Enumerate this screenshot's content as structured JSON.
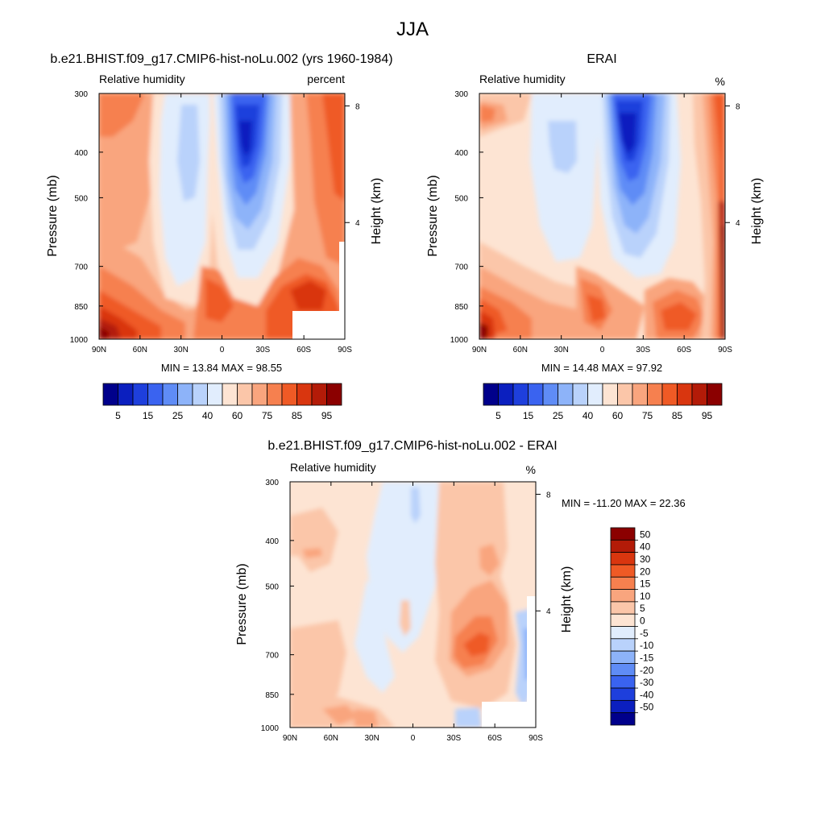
{
  "title": "JJA",
  "chart_data": [
    {
      "type": "heatmap",
      "title": "b.e21.BHIST.f09_g17.CMIP6-hist-noLu.002 (yrs 1960-1984)",
      "left_label": "Relative humidity",
      "right_label": "percent",
      "ylabel": "Pressure (mb)",
      "ylabel2": "Height (km)",
      "x_ticks": [
        "90N",
        "60N",
        "30N",
        "0",
        "30S",
        "60S",
        "90S"
      ],
      "y_ticks": [
        "300",
        "400",
        "500",
        "700",
        "850",
        "1000"
      ],
      "y2_ticks": [
        "8",
        "4"
      ],
      "stats": "MIN =  13.84  MAX =  98.55",
      "levels": [
        "5",
        "15",
        "25",
        "40",
        "60",
        "75",
        "85",
        "95"
      ],
      "colors": [
        "#00008b",
        "#0b1fbf",
        "#1e3fdc",
        "#3a63f0",
        "#5f8cf6",
        "#8db3f9",
        "#b9d2fb",
        "#e1edfd",
        "#fde4d3",
        "#fbc6a9",
        "#f9a57e",
        "#f6804f",
        "#ef5a25",
        "#d9360f",
        "#b31b08",
        "#8b0000"
      ]
    },
    {
      "type": "heatmap",
      "title": "ERAI",
      "left_label": "Relative humidity",
      "right_label": "%",
      "ylabel": "Pressure (mb)",
      "ylabel2": "Height (km)",
      "x_ticks": [
        "90N",
        "60N",
        "30N",
        "0",
        "30S",
        "60S",
        "90S"
      ],
      "y_ticks": [
        "300",
        "400",
        "500",
        "700",
        "850",
        "1000"
      ],
      "y2_ticks": [
        "8",
        "4"
      ],
      "stats": "MIN =  14.48  MAX =  97.92",
      "levels": [
        "5",
        "15",
        "25",
        "40",
        "60",
        "75",
        "85",
        "95"
      ],
      "colors": [
        "#00008b",
        "#0b1fbf",
        "#1e3fdc",
        "#3a63f0",
        "#5f8cf6",
        "#8db3f9",
        "#b9d2fb",
        "#e1edfd",
        "#fde4d3",
        "#fbc6a9",
        "#f9a57e",
        "#f6804f",
        "#ef5a25",
        "#d9360f",
        "#b31b08",
        "#8b0000"
      ]
    },
    {
      "type": "heatmap",
      "title": "b.e21.BHIST.f09_g17.CMIP6-hist-noLu.002 - ERAI",
      "left_label": "Relative humidity",
      "right_label": "%",
      "ylabel": "Pressure (mb)",
      "ylabel2": "Height (km)",
      "x_ticks": [
        "90N",
        "60N",
        "30N",
        "0",
        "30S",
        "60S",
        "90S"
      ],
      "y_ticks": [
        "300",
        "400",
        "500",
        "700",
        "850",
        "1000"
      ],
      "y2_ticks": [
        "8",
        "4"
      ],
      "stats": "MIN = -11.20  MAX =  22.36",
      "levels": [
        "50",
        "40",
        "30",
        "20",
        "15",
        "10",
        "5",
        "0",
        "-5",
        "-10",
        "-15",
        "-20",
        "-30",
        "-40",
        "-50"
      ],
      "colors": [
        "#8b0000",
        "#b31b08",
        "#d9360f",
        "#ef5a25",
        "#f6804f",
        "#f9a57e",
        "#fbc6a9",
        "#fde4d3",
        "#e1edfd",
        "#b9d2fb",
        "#8db3f9",
        "#5f8cf6",
        "#3a63f0",
        "#1e3fdc",
        "#0b1fbf",
        "#00008b"
      ]
    }
  ]
}
